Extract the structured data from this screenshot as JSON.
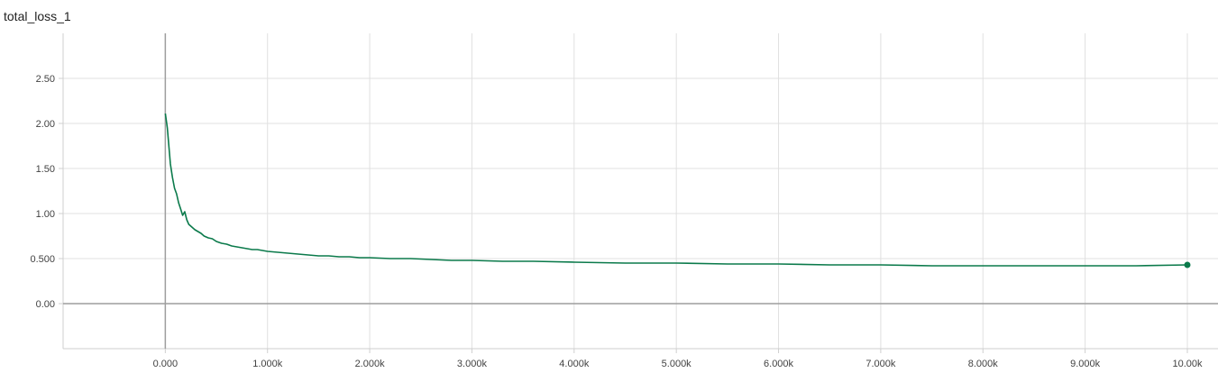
{
  "chart_data": {
    "type": "line",
    "title": "total_loss_1",
    "xlabel": "",
    "ylabel": "",
    "xlim": [
      -1000,
      10300
    ],
    "ylim": [
      -0.5,
      3.0
    ],
    "grid": true,
    "x_ticks": [
      {
        "value": 0,
        "label": "0.000"
      },
      {
        "value": 1000,
        "label": "1.000k"
      },
      {
        "value": 2000,
        "label": "2.000k"
      },
      {
        "value": 3000,
        "label": "3.000k"
      },
      {
        "value": 4000,
        "label": "4.000k"
      },
      {
        "value": 5000,
        "label": "5.000k"
      },
      {
        "value": 6000,
        "label": "6.000k"
      },
      {
        "value": 7000,
        "label": "7.000k"
      },
      {
        "value": 8000,
        "label": "8.000k"
      },
      {
        "value": 9000,
        "label": "9.000k"
      },
      {
        "value": 10000,
        "label": "10.00k"
      }
    ],
    "y_ticks": [
      {
        "value": 0,
        "label": "0.00"
      },
      {
        "value": 0.5,
        "label": "0.500"
      },
      {
        "value": 1.0,
        "label": "1.00"
      },
      {
        "value": 1.5,
        "label": "1.50"
      },
      {
        "value": 2.0,
        "label": "2.00"
      },
      {
        "value": 2.5,
        "label": "2.50"
      }
    ],
    "series": [
      {
        "color": "#0b7a4b",
        "points": [
          [
            0,
            2.11
          ],
          [
            20,
            1.95
          ],
          [
            35,
            1.75
          ],
          [
            50,
            1.55
          ],
          [
            70,
            1.4
          ],
          [
            90,
            1.28
          ],
          [
            110,
            1.22
          ],
          [
            130,
            1.12
          ],
          [
            150,
            1.05
          ],
          [
            170,
            0.98
          ],
          [
            190,
            1.02
          ],
          [
            210,
            0.93
          ],
          [
            230,
            0.88
          ],
          [
            260,
            0.85
          ],
          [
            290,
            0.82
          ],
          [
            320,
            0.8
          ],
          [
            350,
            0.78
          ],
          [
            380,
            0.75
          ],
          [
            420,
            0.73
          ],
          [
            460,
            0.72
          ],
          [
            500,
            0.69
          ],
          [
            550,
            0.67
          ],
          [
            600,
            0.66
          ],
          [
            650,
            0.64
          ],
          [
            700,
            0.63
          ],
          [
            750,
            0.62
          ],
          [
            800,
            0.61
          ],
          [
            850,
            0.6
          ],
          [
            900,
            0.6
          ],
          [
            950,
            0.59
          ],
          [
            1000,
            0.58
          ],
          [
            1100,
            0.57
          ],
          [
            1200,
            0.56
          ],
          [
            1300,
            0.55
          ],
          [
            1400,
            0.54
          ],
          [
            1500,
            0.53
          ],
          [
            1600,
            0.53
          ],
          [
            1700,
            0.52
          ],
          [
            1800,
            0.52
          ],
          [
            1900,
            0.51
          ],
          [
            2000,
            0.51
          ],
          [
            2200,
            0.5
          ],
          [
            2400,
            0.5
          ],
          [
            2600,
            0.49
          ],
          [
            2800,
            0.48
          ],
          [
            3000,
            0.48
          ],
          [
            3300,
            0.47
          ],
          [
            3600,
            0.47
          ],
          [
            4000,
            0.46
          ],
          [
            4500,
            0.45
          ],
          [
            5000,
            0.45
          ],
          [
            5500,
            0.44
          ],
          [
            6000,
            0.44
          ],
          [
            6500,
            0.43
          ],
          [
            7000,
            0.43
          ],
          [
            7500,
            0.42
          ],
          [
            8000,
            0.42
          ],
          [
            8500,
            0.42
          ],
          [
            9000,
            0.42
          ],
          [
            9500,
            0.42
          ],
          [
            10000,
            0.43
          ]
        ]
      }
    ]
  }
}
